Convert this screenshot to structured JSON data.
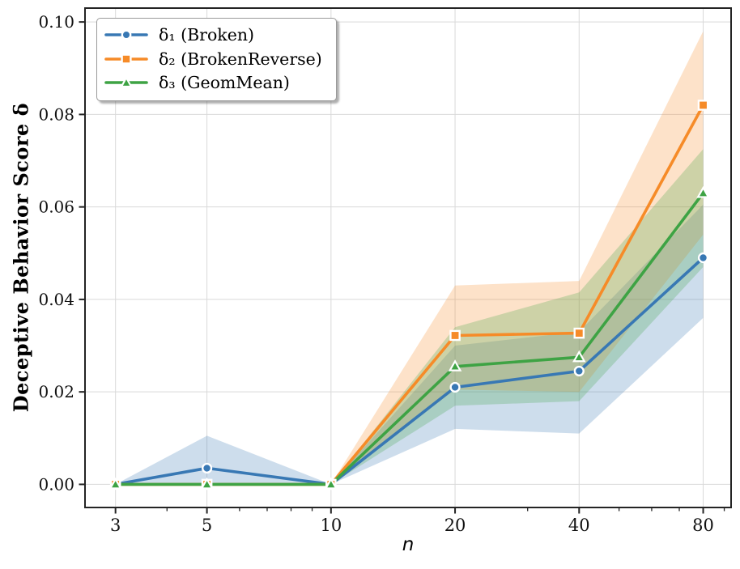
{
  "figure": {
    "ylabel": "Deceptive Behavior Score δ",
    "xlabel": "n"
  },
  "chart_data": {
    "type": "line",
    "title": "",
    "xlabel": "n",
    "ylabel": "Deceptive Behavior Score δ",
    "x_scale": "log",
    "x": [
      3,
      5,
      10,
      20,
      40,
      80
    ],
    "xtick_labels": [
      "3",
      "5",
      "10",
      "20",
      "40",
      "80"
    ],
    "minor_xticks": [
      4,
      6,
      7,
      8,
      9,
      30,
      50,
      60,
      70,
      90
    ],
    "yticks": [
      0.0,
      0.02,
      0.04,
      0.06,
      0.08,
      0.1
    ],
    "ytick_labels": [
      "0.00",
      "0.02",
      "0.04",
      "0.06",
      "0.08",
      "0.10"
    ],
    "xlim": [
      2.53,
      93.5
    ],
    "ylim": [
      -0.005,
      0.103
    ],
    "grid": true,
    "legend_position": "upper left",
    "series": [
      {
        "name": "δ₁ (Broken)",
        "marker": "circle",
        "color": "#3878b4",
        "band_opacity": 0.25,
        "values": [
          0.0,
          0.0035,
          0.0,
          0.021,
          0.0245,
          0.049
        ],
        "band_lower": [
          0.0,
          0.0,
          0.0,
          0.012,
          0.011,
          0.036
        ],
        "band_upper": [
          0.0,
          0.0105,
          0.0,
          0.03,
          0.033,
          0.0605
        ]
      },
      {
        "name": "δ₂ (BrokenReverse)",
        "marker": "square",
        "color": "#f68ب28",
        "band_opacity": 0.25,
        "values": [
          0.0,
          0.0,
          0.0,
          0.0322,
          0.0327,
          0.082
        ],
        "band_lower": [
          0.0,
          0.0,
          0.0,
          0.0205,
          0.02,
          0.054
        ],
        "band_upper": [
          0.0,
          0.0,
          0.0,
          0.043,
          0.044,
          0.098
        ]
      },
      {
        "name": "δ₃ (GeomMean)",
        "marker": "triangle",
        "color": "#3ea344",
        "band_opacity": 0.25,
        "values": [
          0.0,
          0.0,
          0.0,
          0.0255,
          0.0275,
          0.063
        ],
        "band_lower": [
          0.0,
          0.0,
          0.0,
          0.017,
          0.018,
          0.047
        ],
        "band_upper": [
          0.0,
          0.0,
          0.0,
          0.034,
          0.0415,
          0.0725
        ]
      }
    ],
    "style": {
      "grid_color": "#d9d9d9",
      "spine_color": "#242424",
      "tick_label_color": "#111111",
      "marker_edge_color": "#ffffff",
      "line_width": 3.6
    }
  }
}
